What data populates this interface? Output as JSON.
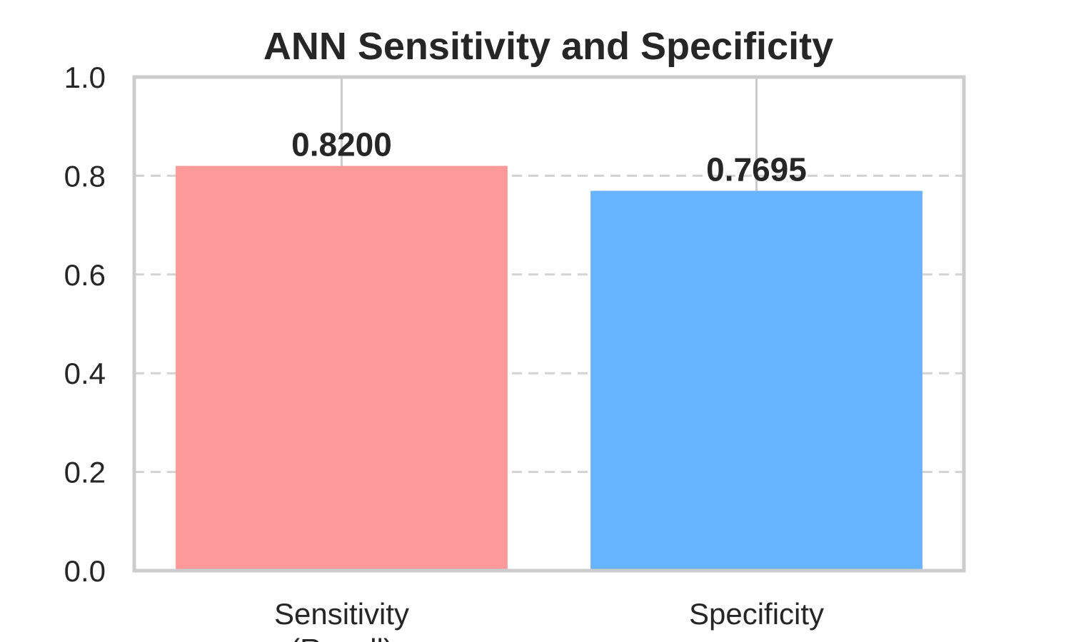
{
  "chart_data": {
    "type": "bar",
    "title": "ANN Sensitivity and Specificity",
    "xlabel": "",
    "ylabel": "",
    "categories": [
      [
        "Sensitivity",
        "(Recall)"
      ],
      [
        "Specificity"
      ]
    ],
    "values": [
      0.82,
      0.7695
    ],
    "data_labels": [
      "0.8200",
      "0.7695"
    ],
    "colors": [
      "#ff9999",
      "#66b3ff"
    ],
    "ylim": [
      0,
      1.0
    ],
    "yticks": [
      0.0,
      0.2,
      0.4,
      0.6,
      0.8,
      1.0
    ],
    "ytick_labels": [
      "0.0",
      "0.2",
      "0.4",
      "0.6",
      "0.8",
      "1.0"
    ],
    "grid": "y dashed",
    "legend": "none"
  }
}
